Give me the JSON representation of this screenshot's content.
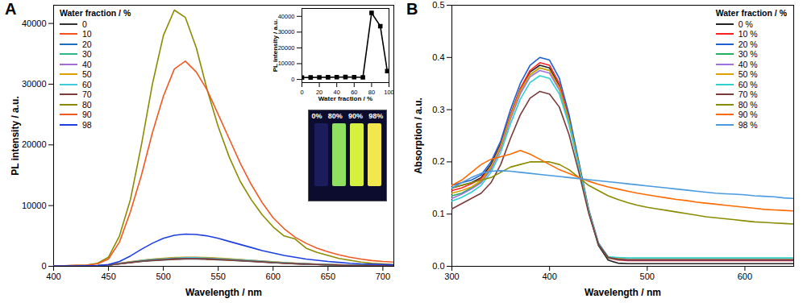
{
  "chart_data": [
    {
      "type": "line",
      "title": "A",
      "x_label": "Wavelength / nm",
      "y_label": "PL intensity / a.u.",
      "legend_title": "Water fraction / %",
      "legend": "top-left",
      "x": [
        400,
        410,
        420,
        430,
        440,
        450,
        460,
        470,
        480,
        490,
        500,
        510,
        520,
        530,
        540,
        550,
        560,
        570,
        580,
        590,
        600,
        610,
        620,
        630,
        640,
        650,
        660,
        670,
        680,
        690,
        700,
        710
      ],
      "xlim": [
        400,
        710
      ],
      "xticks": [
        400,
        450,
        500,
        550,
        600,
        650,
        700
      ],
      "ylim": [
        0,
        43000
      ],
      "yticks": [
        0,
        10000,
        20000,
        30000,
        40000
      ],
      "series": [
        {
          "name": "0",
          "color": "#333333",
          "values": [
            50,
            50,
            60,
            70,
            100,
            200,
            400,
            600,
            800,
            950,
            1050,
            1150,
            1200,
            1200,
            1150,
            1080,
            1000,
            900,
            800,
            700,
            600,
            500,
            420,
            350,
            290,
            240,
            200,
            160,
            130,
            110,
            90,
            80
          ]
        },
        {
          "name": "10",
          "color": "#f4511e",
          "values": [
            50,
            50,
            60,
            70,
            100,
            210,
            420,
            630,
            840,
            1000,
            1100,
            1200,
            1250,
            1250,
            1200,
            1130,
            1040,
            940,
            830,
            730,
            620,
            520,
            440,
            360,
            300,
            250,
            210,
            170,
            140,
            115,
            95,
            85
          ]
        },
        {
          "name": "20",
          "color": "#1f6fbf",
          "values": [
            50,
            50,
            60,
            70,
            110,
            220,
            440,
            660,
            880,
            1040,
            1150,
            1260,
            1310,
            1310,
            1260,
            1180,
            1090,
            980,
            870,
            760,
            650,
            540,
            460,
            380,
            310,
            260,
            215,
            175,
            145,
            120,
            100,
            90
          ]
        },
        {
          "name": "30",
          "color": "#2eb88a",
          "values": [
            50,
            50,
            60,
            75,
            110,
            230,
            460,
            690,
            920,
            1090,
            1200,
            1310,
            1370,
            1370,
            1310,
            1230,
            1140,
            1020,
            910,
            790,
            680,
            570,
            480,
            390,
            320,
            270,
            225,
            180,
            150,
            125,
            105,
            90
          ]
        },
        {
          "name": "40",
          "color": "#a66bd3",
          "values": [
            60,
            60,
            70,
            80,
            120,
            240,
            480,
            720,
            960,
            1140,
            1260,
            1380,
            1440,
            1440,
            1380,
            1300,
            1200,
            1080,
            960,
            840,
            720,
            600,
            500,
            420,
            350,
            290,
            240,
            190,
            160,
            130,
            110,
            95
          ]
        },
        {
          "name": "50",
          "color": "#e0a000",
          "values": [
            60,
            60,
            70,
            80,
            120,
            250,
            500,
            750,
            1000,
            1190,
            1310,
            1440,
            1500,
            1500,
            1440,
            1350,
            1250,
            1120,
            1000,
            870,
            750,
            620,
            520,
            440,
            360,
            300,
            250,
            200,
            160,
            135,
            110,
            100
          ]
        },
        {
          "name": "60",
          "color": "#3eccdc",
          "values": [
            55,
            55,
            65,
            75,
            115,
            235,
            470,
            700,
            940,
            1120,
            1230,
            1350,
            1410,
            1410,
            1350,
            1270,
            1170,
            1060,
            940,
            820,
            700,
            590,
            490,
            410,
            340,
            280,
            235,
            190,
            155,
            130,
            105,
            95
          ]
        },
        {
          "name": "70",
          "color": "#7b3f3f",
          "values": [
            50,
            50,
            60,
            70,
            105,
            215,
            430,
            650,
            860,
            1020,
            1130,
            1240,
            1290,
            1290,
            1240,
            1160,
            1070,
            970,
            860,
            750,
            640,
            540,
            450,
            380,
            310,
            260,
            215,
            175,
            140,
            120,
            100,
            85
          ]
        },
        {
          "name": "80",
          "color": "#8b8b00",
          "values": [
            100,
            100,
            150,
            200,
            500,
            1500,
            5000,
            11000,
            20000,
            30000,
            38000,
            42200,
            41000,
            36000,
            29000,
            23000,
            18000,
            14000,
            11000,
            8500,
            6500,
            5000,
            4500,
            3000,
            2300,
            1800,
            1300,
            1000,
            700,
            500,
            400,
            300
          ]
        },
        {
          "name": "90",
          "color": "#f05a22",
          "values": [
            100,
            100,
            150,
            200,
            400,
            1200,
            4000,
            9000,
            15000,
            22000,
            28000,
            32500,
            33800,
            32000,
            29000,
            25000,
            21000,
            17000,
            13500,
            10500,
            8000,
            6200,
            4800,
            3800,
            3000,
            2400,
            1900,
            1500,
            1200,
            950,
            800,
            700
          ]
        },
        {
          "name": "98",
          "color": "#1e3fe0",
          "values": [
            50,
            50,
            60,
            80,
            100,
            300,
            800,
            1700,
            2800,
            3800,
            4600,
            5100,
            5300,
            5250,
            5000,
            4600,
            4100,
            3600,
            3100,
            2600,
            2200,
            1800,
            1500,
            1200,
            1000,
            800,
            650,
            500,
            400,
            350,
            300,
            250
          ]
        }
      ]
    },
    {
      "type": "line",
      "marker": "square",
      "color": "#000000",
      "x_label": "Water fraction / %",
      "y_label": "PL intensity / a.u.",
      "x": [
        0,
        10,
        20,
        30,
        40,
        50,
        60,
        70,
        80,
        90,
        98
      ],
      "values": [
        1200,
        1250,
        1310,
        1370,
        1440,
        1500,
        1410,
        1290,
        42200,
        33800,
        5300
      ],
      "xlim": [
        0,
        100
      ],
      "xticks": [
        0,
        20,
        40,
        60,
        80,
        100
      ],
      "ylim": [
        -2000,
        45000
      ],
      "yticks": [
        0,
        10000,
        20000,
        30000,
        40000
      ],
      "annotations": [
        "0%",
        "80%",
        "90%",
        "98%"
      ]
    },
    {
      "type": "line",
      "title": "B",
      "x_label": "Wavelength / nm",
      "y_label": "Absorption / a.u.",
      "legend_title": "Water fraction / %",
      "legend": "top-right",
      "x": [
        300,
        310,
        320,
        330,
        340,
        350,
        360,
        370,
        380,
        390,
        400,
        410,
        420,
        430,
        440,
        450,
        460,
        470,
        480,
        490,
        500,
        510,
        520,
        530,
        540,
        550,
        560,
        570,
        580,
        590,
        600,
        610,
        620,
        630,
        640,
        650
      ],
      "xlim": [
        300,
        650
      ],
      "xticks": [
        300,
        400,
        500,
        600
      ],
      "ylim": [
        0,
        0.5
      ],
      "yticks": [
        {
          "value": 0,
          "label": "0.0"
        },
        0.1,
        0.2,
        0.3,
        0.4,
        0.5
      ],
      "series": [
        {
          "name": "0 %",
          "color": "#222222",
          "values": [
            0.15,
            0.155,
            0.16,
            0.17,
            0.195,
            0.235,
            0.29,
            0.34,
            0.372,
            0.385,
            0.38,
            0.345,
            0.28,
            0.195,
            0.105,
            0.04,
            0.012,
            0.006,
            0.005,
            0.005,
            0.005,
            0.005,
            0.005,
            0.005,
            0.005,
            0.005,
            0.005,
            0.005,
            0.005,
            0.005,
            0.005,
            0.005,
            0.005,
            0.005,
            0.005,
            0.005
          ]
        },
        {
          "name": "10 %",
          "color": "#ff2020",
          "values": [
            0.145,
            0.15,
            0.158,
            0.168,
            0.19,
            0.232,
            0.29,
            0.34,
            0.375,
            0.39,
            0.385,
            0.35,
            0.283,
            0.196,
            0.107,
            0.043,
            0.016,
            0.012,
            0.011,
            0.011,
            0.011,
            0.011,
            0.011,
            0.011,
            0.011,
            0.011,
            0.011,
            0.011,
            0.011,
            0.011,
            0.011,
            0.011,
            0.011,
            0.011,
            0.011,
            0.011
          ]
        },
        {
          "name": "20 %",
          "color": "#1f5fd0",
          "values": [
            0.155,
            0.16,
            0.165,
            0.175,
            0.2,
            0.24,
            0.3,
            0.35,
            0.385,
            0.4,
            0.395,
            0.36,
            0.29,
            0.2,
            0.11,
            0.045,
            0.018,
            0.013,
            0.012,
            0.012,
            0.012,
            0.012,
            0.012,
            0.012,
            0.012,
            0.012,
            0.012,
            0.012,
            0.012,
            0.012,
            0.012,
            0.012,
            0.012,
            0.012,
            0.012,
            0.012
          ]
        },
        {
          "name": "30 %",
          "color": "#20b060",
          "values": [
            0.135,
            0.14,
            0.15,
            0.162,
            0.188,
            0.228,
            0.285,
            0.335,
            0.367,
            0.38,
            0.375,
            0.342,
            0.278,
            0.193,
            0.106,
            0.042,
            0.016,
            0.014,
            0.013,
            0.013,
            0.013,
            0.013,
            0.013,
            0.013,
            0.013,
            0.013,
            0.013,
            0.013,
            0.013,
            0.013,
            0.013,
            0.013,
            0.013,
            0.013,
            0.013,
            0.013
          ]
        },
        {
          "name": "40 %",
          "color": "#a070e0",
          "values": [
            0.13,
            0.138,
            0.148,
            0.16,
            0.185,
            0.225,
            0.282,
            0.33,
            0.363,
            0.375,
            0.37,
            0.338,
            0.275,
            0.192,
            0.106,
            0.043,
            0.017,
            0.015,
            0.014,
            0.014,
            0.014,
            0.014,
            0.014,
            0.014,
            0.014,
            0.014,
            0.014,
            0.014,
            0.014,
            0.014,
            0.014,
            0.014,
            0.014,
            0.014,
            0.014,
            0.014
          ]
        },
        {
          "name": "50 %",
          "color": "#e0a000",
          "values": [
            0.14,
            0.145,
            0.152,
            0.164,
            0.19,
            0.23,
            0.287,
            0.336,
            0.367,
            0.38,
            0.375,
            0.342,
            0.278,
            0.193,
            0.106,
            0.043,
            0.017,
            0.016,
            0.015,
            0.015,
            0.015,
            0.015,
            0.015,
            0.015,
            0.015,
            0.015,
            0.015,
            0.015,
            0.015,
            0.015,
            0.015,
            0.015,
            0.015,
            0.015,
            0.015,
            0.015
          ]
        },
        {
          "name": "60 %",
          "color": "#30d0d0",
          "values": [
            0.125,
            0.132,
            0.142,
            0.155,
            0.18,
            0.218,
            0.273,
            0.32,
            0.352,
            0.365,
            0.36,
            0.33,
            0.27,
            0.19,
            0.105,
            0.043,
            0.018,
            0.017,
            0.016,
            0.016,
            0.016,
            0.016,
            0.016,
            0.016,
            0.016,
            0.016,
            0.016,
            0.016,
            0.016,
            0.016,
            0.016,
            0.016,
            0.016,
            0.016,
            0.016,
            0.016
          ]
        },
        {
          "name": "70 %",
          "color": "#7a3a3a",
          "values": [
            0.11,
            0.12,
            0.13,
            0.14,
            0.16,
            0.195,
            0.245,
            0.29,
            0.322,
            0.335,
            0.33,
            0.305,
            0.252,
            0.18,
            0.102,
            0.042,
            0.017,
            0.014,
            0.012,
            0.012,
            0.012,
            0.012,
            0.012,
            0.012,
            0.012,
            0.012,
            0.012,
            0.012,
            0.012,
            0.012,
            0.012,
            0.012,
            0.012,
            0.012,
            0.012,
            0.012
          ]
        },
        {
          "name": "80 %",
          "color": "#8b8b00",
          "values": [
            0.15,
            0.155,
            0.16,
            0.165,
            0.17,
            0.18,
            0.19,
            0.195,
            0.2,
            0.2,
            0.2,
            0.195,
            0.185,
            0.17,
            0.155,
            0.145,
            0.135,
            0.128,
            0.122,
            0.117,
            0.113,
            0.11,
            0.107,
            0.104,
            0.101,
            0.098,
            0.095,
            0.093,
            0.091,
            0.089,
            0.087,
            0.085,
            0.084,
            0.083,
            0.082,
            0.081
          ]
        },
        {
          "name": "90 %",
          "color": "#ff6a00",
          "values": [
            0.155,
            0.165,
            0.18,
            0.195,
            0.205,
            0.21,
            0.215,
            0.222,
            0.215,
            0.205,
            0.195,
            0.185,
            0.178,
            0.17,
            0.163,
            0.157,
            0.152,
            0.148,
            0.144,
            0.14,
            0.137,
            0.134,
            0.131,
            0.128,
            0.126,
            0.123,
            0.121,
            0.119,
            0.117,
            0.115,
            0.113,
            0.111,
            0.109,
            0.108,
            0.107,
            0.106
          ]
        },
        {
          "name": "98 %",
          "color": "#4a9ae0",
          "values": [
            0.15,
            0.16,
            0.17,
            0.178,
            0.182,
            0.183,
            0.182,
            0.18,
            0.178,
            0.176,
            0.174,
            0.172,
            0.17,
            0.168,
            0.166,
            0.164,
            0.162,
            0.16,
            0.158,
            0.156,
            0.154,
            0.152,
            0.15,
            0.148,
            0.146,
            0.144,
            0.142,
            0.14,
            0.139,
            0.138,
            0.137,
            0.135,
            0.134,
            0.133,
            0.131,
            0.13
          ]
        }
      ]
    }
  ]
}
